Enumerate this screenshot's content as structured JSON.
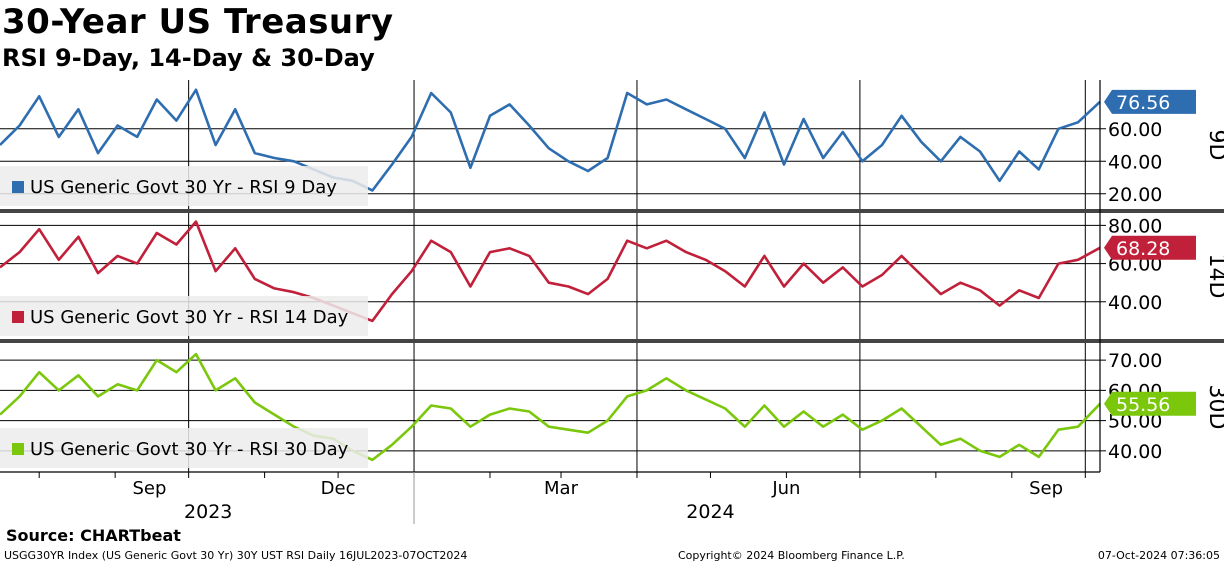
{
  "title": "30-Year US Treasury",
  "subtitle": "RSI 9-Day, 14-Day & 30-Day",
  "source": "Source: CHARTbeat",
  "footer": {
    "left": "USGG30YR Index (US Generic Govt 30 Yr) 30Y UST RSI  Daily 16JUL2023-07OCT2024",
    "middle": "Copyright© 2024 Bloomberg Finance L.P.",
    "right": "07-Oct-2024 07:36:05"
  },
  "x_axis": {
    "month_labels": [
      "Sep",
      "Dec",
      "Mar",
      "Jun",
      "Sep"
    ],
    "year_labels": [
      "2023",
      "2024"
    ]
  },
  "chart_data": {
    "type": "line",
    "x_range": [
      "2023-07-16",
      "2024-10-07"
    ],
    "panels": [
      {
        "id": "9D",
        "label": "9D",
        "legend": "US Generic Govt 30 Yr - RSI 9 Day",
        "color": "#2e6db0",
        "last_value": "76.56",
        "y_ticks": [
          "20.00",
          "40.00",
          "60.00"
        ],
        "ylim": [
          10,
          90
        ],
        "x": [
          "2023-07-16",
          "2023-07-24",
          "2023-08-01",
          "2023-08-09",
          "2023-08-17",
          "2023-08-25",
          "2023-09-02",
          "2023-09-10",
          "2023-09-18",
          "2023-09-26",
          "2023-10-04",
          "2023-10-12",
          "2023-10-20",
          "2023-10-28",
          "2023-11-05",
          "2023-11-13",
          "2023-11-21",
          "2023-11-29",
          "2023-12-07",
          "2023-12-15",
          "2023-12-23",
          "2023-12-31",
          "2024-01-08",
          "2024-01-16",
          "2024-01-24",
          "2024-02-01",
          "2024-02-09",
          "2024-02-17",
          "2024-02-25",
          "2024-03-04",
          "2024-03-12",
          "2024-03-20",
          "2024-03-28",
          "2024-04-05",
          "2024-04-13",
          "2024-04-21",
          "2024-04-29",
          "2024-05-07",
          "2024-05-15",
          "2024-05-23",
          "2024-05-31",
          "2024-06-08",
          "2024-06-16",
          "2024-06-24",
          "2024-07-02",
          "2024-07-10",
          "2024-07-18",
          "2024-07-26",
          "2024-08-03",
          "2024-08-11",
          "2024-08-19",
          "2024-08-27",
          "2024-09-04",
          "2024-09-12",
          "2024-09-20",
          "2024-09-28",
          "2024-10-07"
        ],
        "y": [
          50,
          62,
          80,
          55,
          72,
          45,
          62,
          55,
          78,
          65,
          84,
          50,
          72,
          45,
          42,
          40,
          35,
          30,
          28,
          22,
          38,
          55,
          82,
          70,
          36,
          68,
          75,
          62,
          48,
          40,
          34,
          42,
          82,
          75,
          78,
          72,
          66,
          60,
          42,
          70,
          38,
          66,
          42,
          58,
          40,
          50,
          68,
          52,
          40,
          55,
          46,
          28,
          46,
          35,
          60,
          64,
          76.56
        ]
      },
      {
        "id": "14D",
        "label": "14D",
        "legend": "US Generic Govt 30 Yr - RSI 14 Day",
        "color": "#c0203a",
        "last_value": "68.28",
        "y_ticks": [
          "40.00",
          "60.00",
          "80.00"
        ],
        "ylim": [
          20,
          87
        ],
        "x": [
          "2023-07-16",
          "2023-07-24",
          "2023-08-01",
          "2023-08-09",
          "2023-08-17",
          "2023-08-25",
          "2023-09-02",
          "2023-09-10",
          "2023-09-18",
          "2023-09-26",
          "2023-10-04",
          "2023-10-12",
          "2023-10-20",
          "2023-10-28",
          "2023-11-05",
          "2023-11-13",
          "2023-11-21",
          "2023-11-29",
          "2023-12-07",
          "2023-12-15",
          "2023-12-23",
          "2023-12-31",
          "2024-01-08",
          "2024-01-16",
          "2024-01-24",
          "2024-02-01",
          "2024-02-09",
          "2024-02-17",
          "2024-02-25",
          "2024-03-04",
          "2024-03-12",
          "2024-03-20",
          "2024-03-28",
          "2024-04-05",
          "2024-04-13",
          "2024-04-21",
          "2024-04-29",
          "2024-05-07",
          "2024-05-15",
          "2024-05-23",
          "2024-05-31",
          "2024-06-08",
          "2024-06-16",
          "2024-06-24",
          "2024-07-02",
          "2024-07-10",
          "2024-07-18",
          "2024-07-26",
          "2024-08-03",
          "2024-08-11",
          "2024-08-19",
          "2024-08-27",
          "2024-09-04",
          "2024-09-12",
          "2024-09-20",
          "2024-09-28",
          "2024-10-07"
        ],
        "y": [
          58,
          66,
          78,
          62,
          74,
          55,
          64,
          60,
          76,
          70,
          82,
          56,
          68,
          52,
          47,
          45,
          42,
          38,
          34,
          30,
          44,
          56,
          72,
          66,
          48,
          66,
          68,
          64,
          50,
          48,
          44,
          52,
          72,
          68,
          72,
          66,
          62,
          56,
          48,
          64,
          48,
          60,
          50,
          58,
          48,
          54,
          64,
          54,
          44,
          50,
          46,
          38,
          46,
          42,
          60,
          62,
          68.28
        ]
      },
      {
        "id": "30D",
        "label": "30D",
        "legend": "US Generic Govt 30 Yr - RSI 30 Day",
        "color": "#7ac70c",
        "last_value": "55.56",
        "y_ticks": [
          "40.00",
          "50.00",
          "60.00",
          "70.00"
        ],
        "ylim": [
          33,
          76
        ],
        "x": [
          "2023-07-16",
          "2023-07-24",
          "2023-08-01",
          "2023-08-09",
          "2023-08-17",
          "2023-08-25",
          "2023-09-02",
          "2023-09-10",
          "2023-09-18",
          "2023-09-26",
          "2023-10-04",
          "2023-10-12",
          "2023-10-20",
          "2023-10-28",
          "2023-11-05",
          "2023-11-13",
          "2023-11-21",
          "2023-11-29",
          "2023-12-07",
          "2023-12-15",
          "2023-12-23",
          "2023-12-31",
          "2024-01-08",
          "2024-01-16",
          "2024-01-24",
          "2024-02-01",
          "2024-02-09",
          "2024-02-17",
          "2024-02-25",
          "2024-03-04",
          "2024-03-12",
          "2024-03-20",
          "2024-03-28",
          "2024-04-05",
          "2024-04-13",
          "2024-04-21",
          "2024-04-29",
          "2024-05-07",
          "2024-05-15",
          "2024-05-23",
          "2024-05-31",
          "2024-06-08",
          "2024-06-16",
          "2024-06-24",
          "2024-07-02",
          "2024-07-10",
          "2024-07-18",
          "2024-07-26",
          "2024-08-03",
          "2024-08-11",
          "2024-08-19",
          "2024-08-27",
          "2024-09-04",
          "2024-09-12",
          "2024-09-20",
          "2024-09-28",
          "2024-10-07"
        ],
        "y": [
          52,
          58,
          66,
          60,
          65,
          58,
          62,
          60,
          70,
          66,
          72,
          60,
          64,
          56,
          52,
          48,
          45,
          44,
          40,
          37,
          42,
          48,
          55,
          54,
          48,
          52,
          54,
          53,
          48,
          47,
          46,
          50,
          58,
          60,
          64,
          60,
          57,
          54,
          48,
          55,
          48,
          53,
          48,
          52,
          47,
          50,
          54,
          48,
          42,
          44,
          40,
          38,
          42,
          38,
          47,
          48,
          55.56
        ]
      }
    ]
  }
}
